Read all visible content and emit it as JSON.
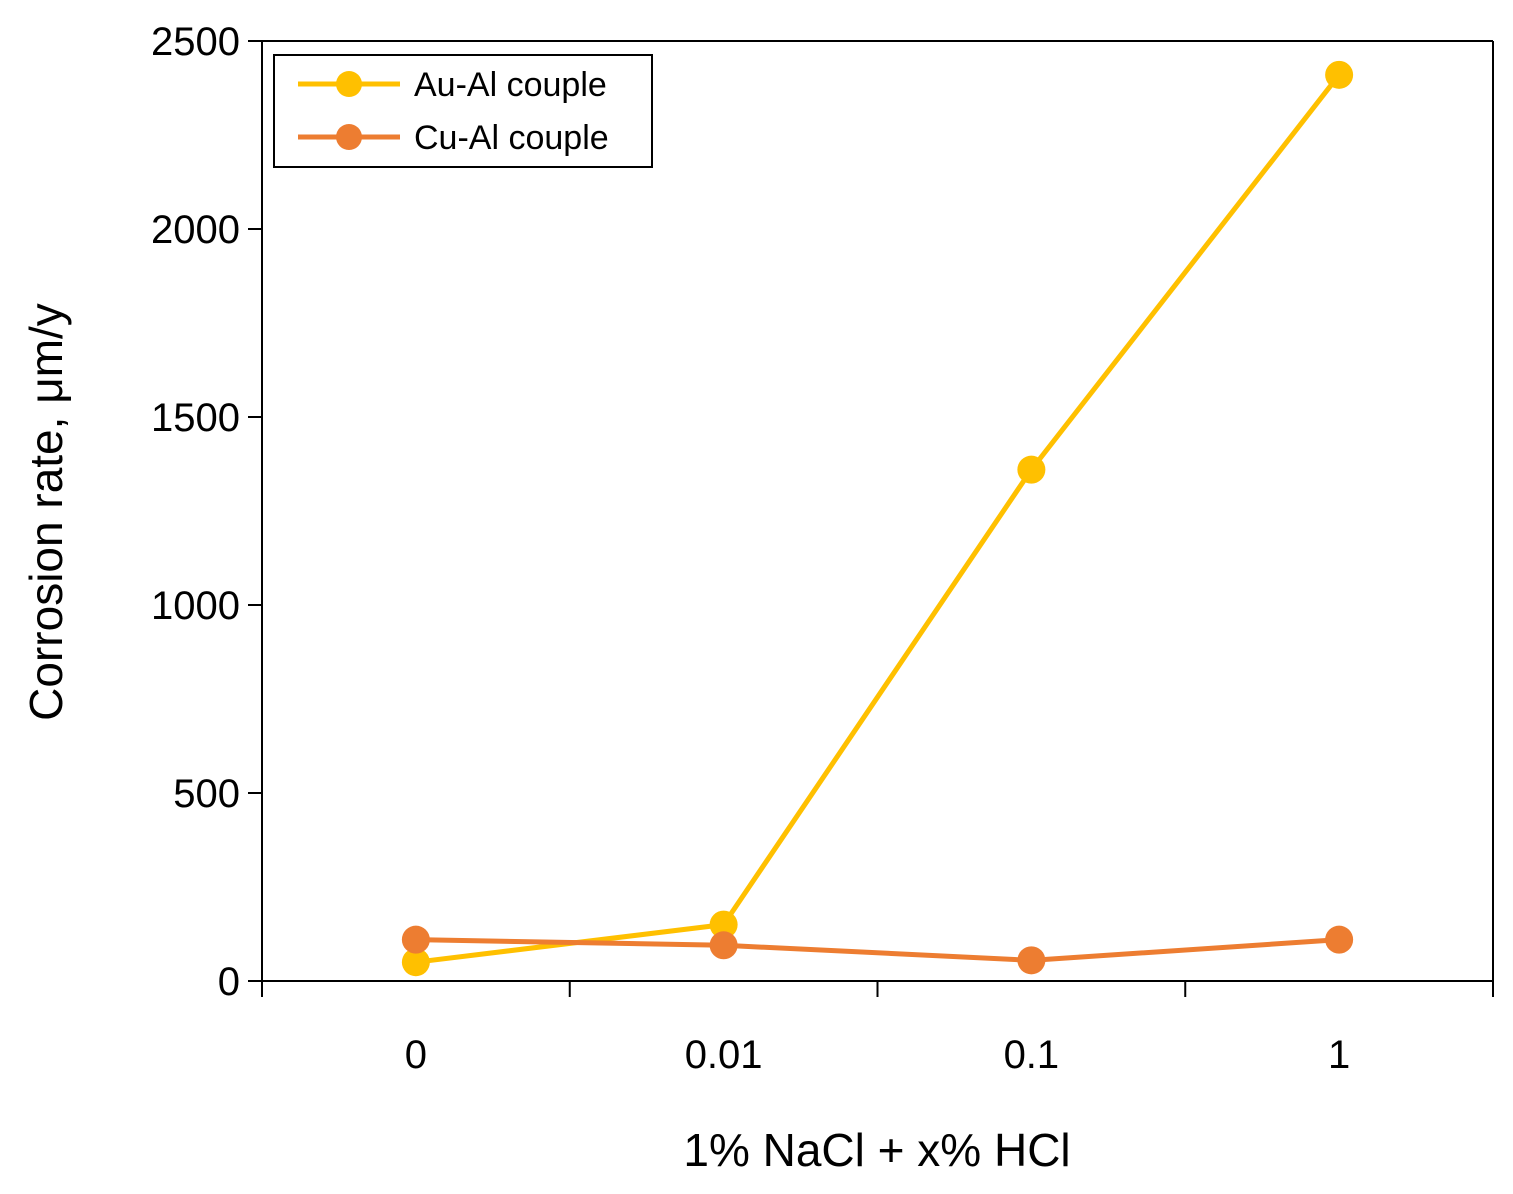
{
  "chart_data": {
    "type": "line",
    "categories": [
      "0",
      "0.01",
      "0.1",
      "1"
    ],
    "xlabel": "1% NaCl + x% HCl",
    "ylabel": "Corrosion rate, μm/y",
    "ylim": [
      0,
      2500
    ],
    "yticks": [
      0,
      500,
      1000,
      1500,
      2000,
      2500
    ],
    "grid": false,
    "legend_position": "top-left",
    "series": [
      {
        "name": "Au-Al couple",
        "color": "#FFC000",
        "values": [
          50,
          150,
          1360,
          2410
        ]
      },
      {
        "name": "Cu-Al couple",
        "color": "#ED7D31",
        "values": [
          110,
          95,
          55,
          110
        ]
      }
    ]
  }
}
